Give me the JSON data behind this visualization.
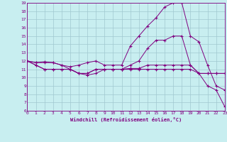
{
  "xlabel": "Windchill (Refroidissement éolien,°C)",
  "bg_color": "#c8eef0",
  "grid_color": "#a0c8d0",
  "line_color": "#800080",
  "xmin": 0,
  "xmax": 23,
  "ymin": 6,
  "ymax": 19,
  "series": [
    {
      "x": [
        0,
        1,
        2,
        3,
        4,
        5,
        6,
        7,
        8,
        9,
        10,
        11,
        12,
        13,
        14,
        15,
        16,
        17,
        18,
        19,
        20,
        21,
        22,
        23
      ],
      "y": [
        12,
        11.8,
        11.9,
        11.8,
        11.5,
        11.0,
        10.5,
        10.3,
        10.5,
        11.0,
        11.0,
        11.0,
        11.1,
        11.1,
        11.5,
        11.5,
        11.5,
        11.5,
        11.5,
        11.5,
        10.5,
        10.5,
        10.5,
        10.5
      ]
    },
    {
      "x": [
        0,
        1,
        2,
        3,
        4,
        5,
        6,
        7,
        8,
        9,
        10,
        11,
        12,
        13,
        14,
        15,
        16,
        17,
        18,
        19,
        20,
        21,
        22,
        23
      ],
      "y": [
        12,
        11.5,
        11.0,
        11.0,
        11.0,
        11.0,
        10.5,
        10.5,
        11.0,
        11.0,
        11.0,
        11.0,
        11.0,
        11.0,
        11.0,
        11.0,
        11.0,
        11.0,
        11.0,
        11.0,
        10.5,
        10.5,
        10.5,
        10.5
      ]
    },
    {
      "x": [
        0,
        1,
        2,
        3,
        4,
        5,
        6,
        7,
        8,
        9,
        10,
        11,
        12,
        13,
        14,
        15,
        16,
        17,
        18,
        19,
        20,
        21,
        22,
        23
      ],
      "y": [
        12,
        11.8,
        11.8,
        11.8,
        11.5,
        11.3,
        11.5,
        11.8,
        12.0,
        11.5,
        11.5,
        11.5,
        13.8,
        15.0,
        16.2,
        17.2,
        18.5,
        19.0,
        19.0,
        15.0,
        14.3,
        11.5,
        9.0,
        8.5
      ]
    },
    {
      "x": [
        0,
        1,
        2,
        3,
        4,
        5,
        6,
        7,
        8,
        9,
        10,
        11,
        12,
        13,
        14,
        15,
        16,
        17,
        18,
        19,
        20,
        21,
        22,
        23
      ],
      "y": [
        12,
        11.5,
        11.0,
        11.0,
        11.0,
        11.0,
        10.5,
        10.5,
        11.0,
        11.0,
        11.0,
        11.0,
        11.5,
        12.0,
        13.5,
        14.5,
        14.5,
        15.0,
        15.0,
        11.5,
        10.5,
        9.0,
        8.5,
        6.5
      ]
    }
  ]
}
